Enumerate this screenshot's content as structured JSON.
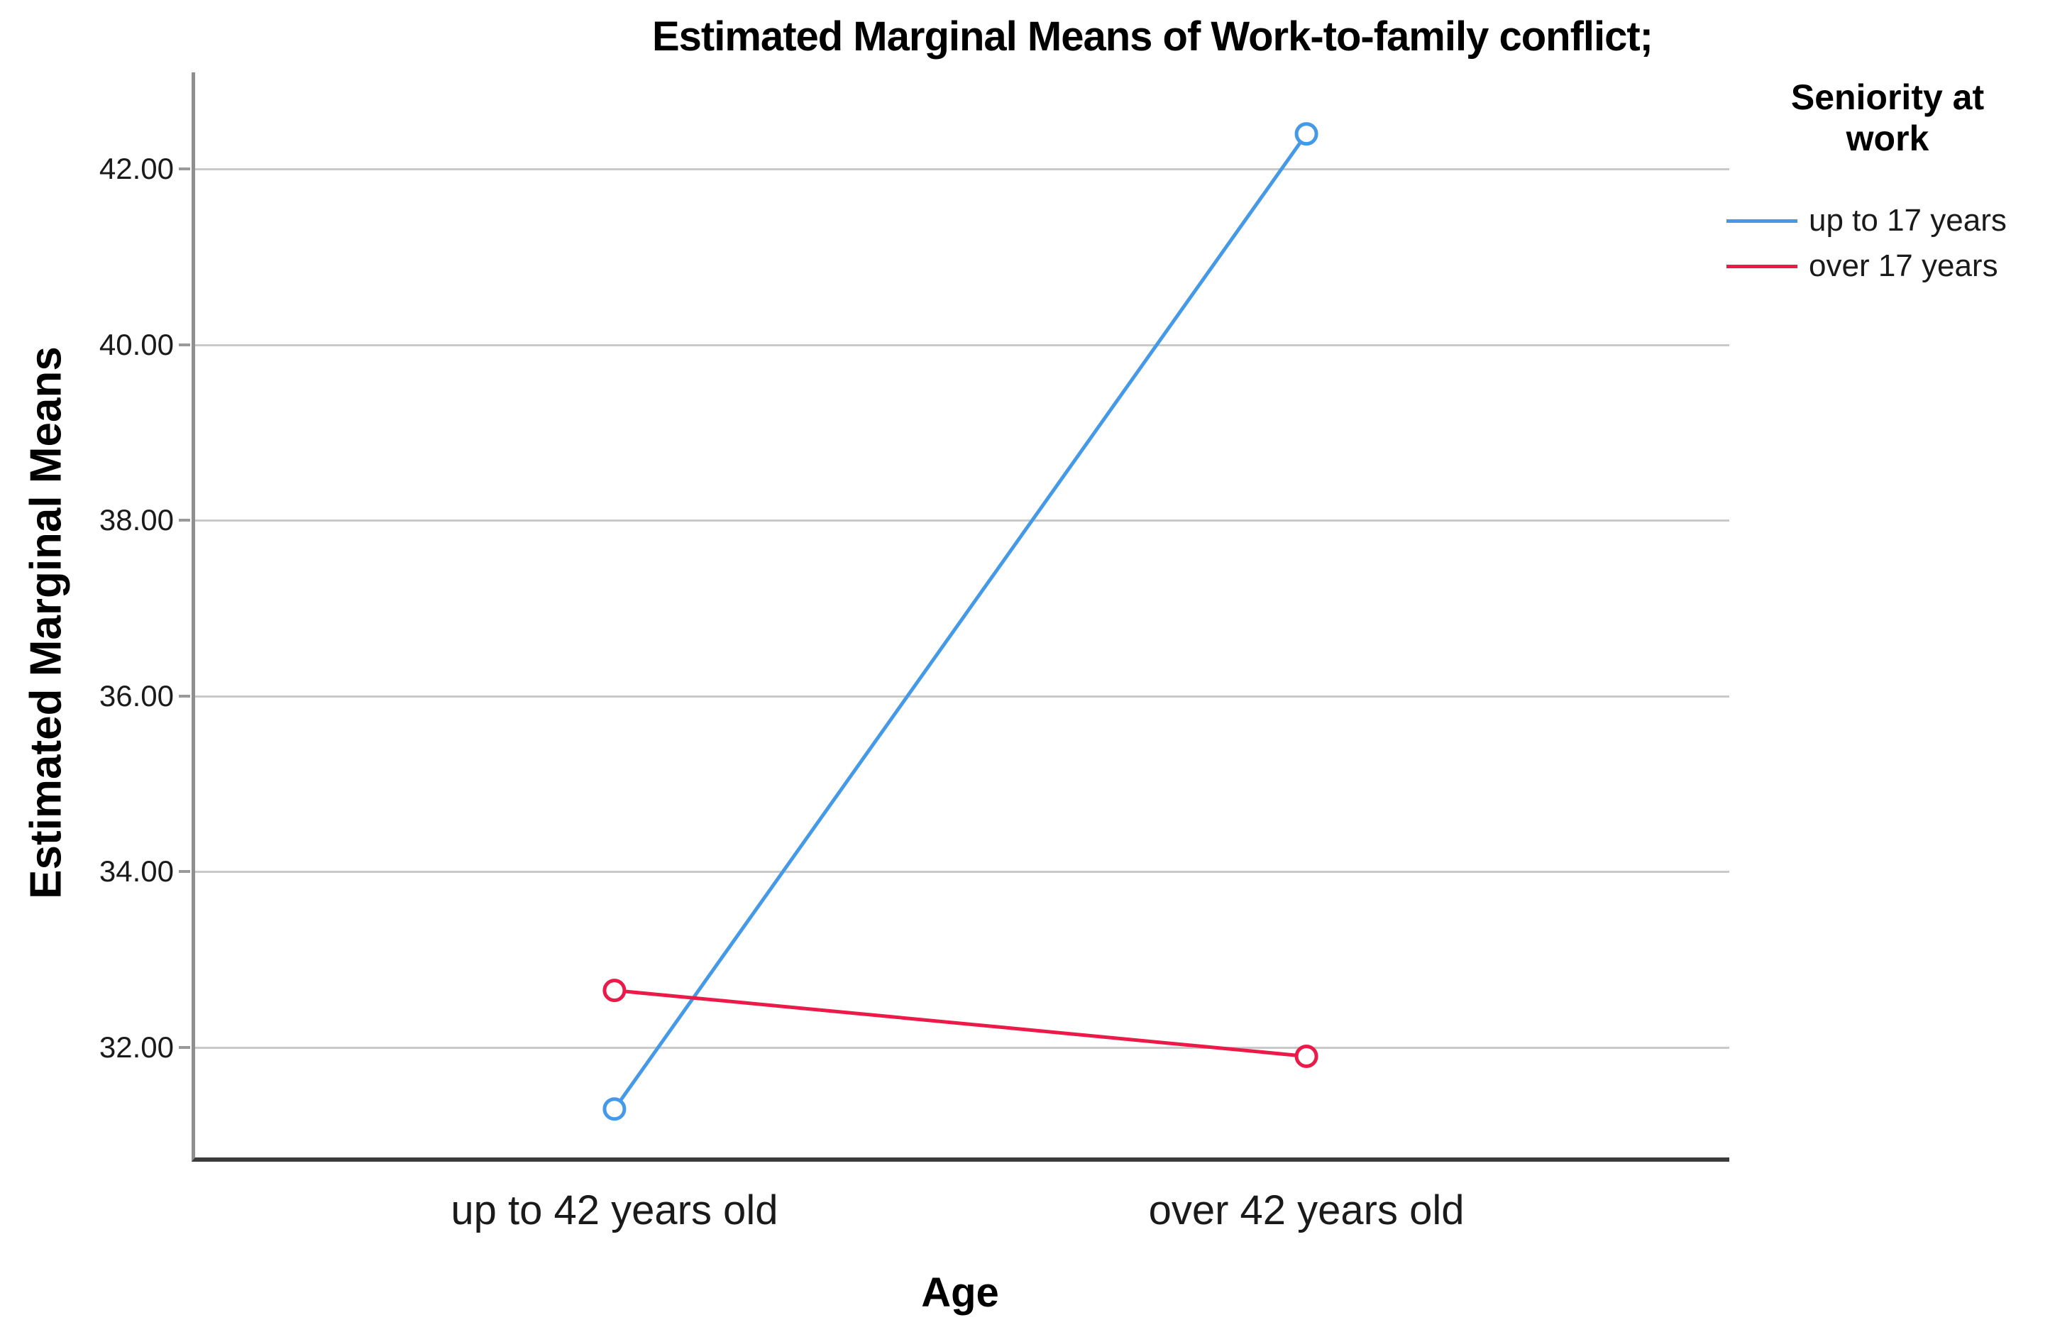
{
  "chart_data": {
    "type": "line",
    "title": "Estimated Marginal Means of Work-to-family conflict;",
    "xlabel": "Age",
    "ylabel": "Estimated Marginal Means",
    "categories": [
      "up to 42 years old",
      "over 42 years old"
    ],
    "series": [
      {
        "name": "up to 17 years",
        "color": "#4499e8",
        "values": [
          31.3,
          42.4
        ]
      },
      {
        "name": "over 17 years",
        "color": "#ec1a49",
        "values": [
          32.65,
          31.9
        ]
      }
    ],
    "legend_title": "Seniority at work",
    "legend_position": "top-right",
    "ylim": [
      30.7,
      43.1
    ],
    "yticks": [
      32,
      34,
      36,
      38,
      40,
      42
    ],
    "ytick_labels": [
      "32.00",
      "34.00",
      "36.00",
      "38.00",
      "40.00",
      "42.00"
    ],
    "grid": "horizontal",
    "marker": "open-circle"
  },
  "colors": {
    "gridline": "#c9c9c9",
    "y_axis": "#8f8f8f",
    "x_axis": "#3b3b3b",
    "background": "#ffffff"
  }
}
